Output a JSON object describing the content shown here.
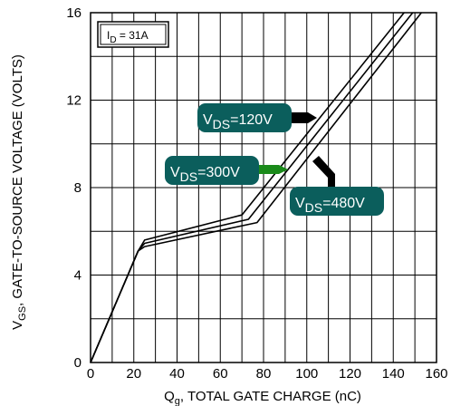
{
  "chart_data": {
    "type": "line",
    "xlabel": "Q",
    "xlabel_sub": "g",
    "xlabel_rest": ", TOTAL GATE CHARGE (nC)",
    "ylabel": "V",
    "ylabel_sub": "GS",
    "ylabel_rest": ", GATE-TO-SOURCE VOLTAGE (VOLTS)",
    "xlim": [
      0,
      160
    ],
    "ylim": [
      0,
      16
    ],
    "xticks": [
      "0",
      "20",
      "40",
      "60",
      "80",
      "100",
      "120",
      "140",
      "160"
    ],
    "yticks": [
      "0",
      "4",
      "8",
      "12",
      "16"
    ],
    "grid": true,
    "annotation": {
      "main": "I",
      "sub": "D",
      "rest": " = 31A"
    },
    "series": [
      {
        "name": "120V",
        "label_main": "V",
        "label_sub": "DS",
        "label_rest": "=120V",
        "points": [
          [
            0,
            0
          ],
          [
            22,
            5.1
          ],
          [
            25,
            5.6
          ],
          [
            70,
            6.75
          ],
          [
            145,
            16
          ]
        ]
      },
      {
        "name": "300V",
        "label_main": "V",
        "label_sub": "DS",
        "label_rest": "=300V",
        "points": [
          [
            0,
            0
          ],
          [
            22,
            5.1
          ],
          [
            25,
            5.45
          ],
          [
            73,
            6.55
          ],
          [
            149,
            16
          ]
        ]
      },
      {
        "name": "480V",
        "label_main": "V",
        "label_sub": "DS",
        "label_rest": "=480V",
        "points": [
          [
            0,
            0
          ],
          [
            22,
            5.1
          ],
          [
            25,
            5.3
          ],
          [
            77,
            6.4
          ],
          [
            153,
            16
          ]
        ]
      }
    ]
  },
  "colors": {
    "tag_fill": "#0b5e5c",
    "arrow_dark": "#000000",
    "arrow_green": "#1a8a1a"
  }
}
